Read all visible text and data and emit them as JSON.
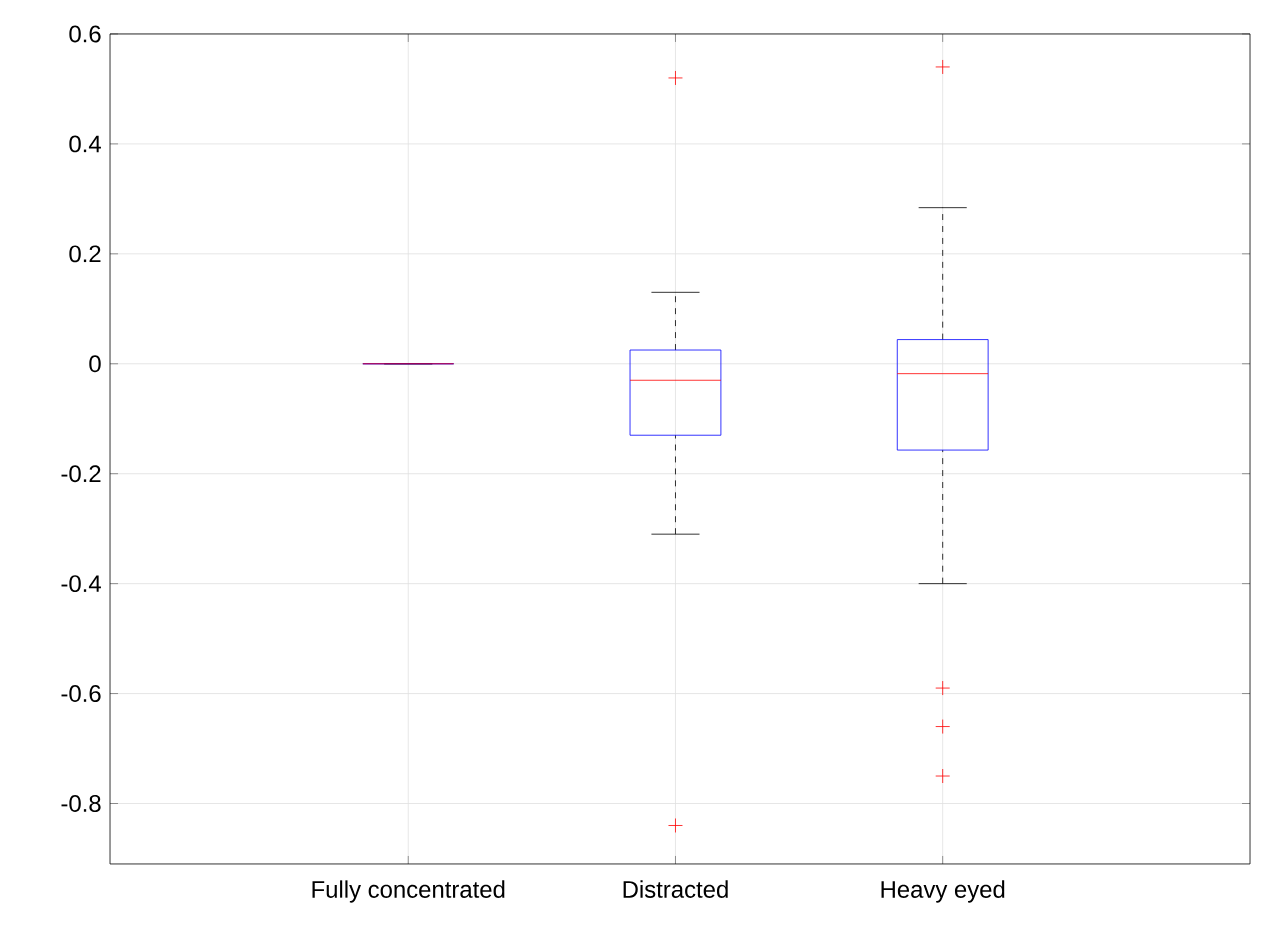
{
  "chart_data": {
    "type": "box",
    "categories": [
      "Fully concentrated",
      "Distracted",
      "Heavy eyed"
    ],
    "boxes": [
      {
        "low": 0,
        "q1": 0,
        "median": 0,
        "q3": 0,
        "high": 0
      },
      {
        "low": -0.31,
        "q1": -0.13,
        "median": -0.03,
        "q3": 0.025,
        "high": 0.13,
        "outliers": [
          0.52,
          -0.84
        ]
      },
      {
        "low": -0.4,
        "q1": -0.157,
        "median": -0.018,
        "q3": 0.044,
        "high": 0.284,
        "outliers": [
          0.54,
          -0.59,
          -0.66,
          -0.75
        ]
      }
    ],
    "ylim": [
      -0.91,
      0.6
    ],
    "yticks": [
      -0.8,
      -0.6,
      -0.4,
      -0.2,
      0,
      0.2,
      0.4,
      0.6
    ],
    "grid": true,
    "marker": "cross",
    "color": "#0000ff"
  }
}
